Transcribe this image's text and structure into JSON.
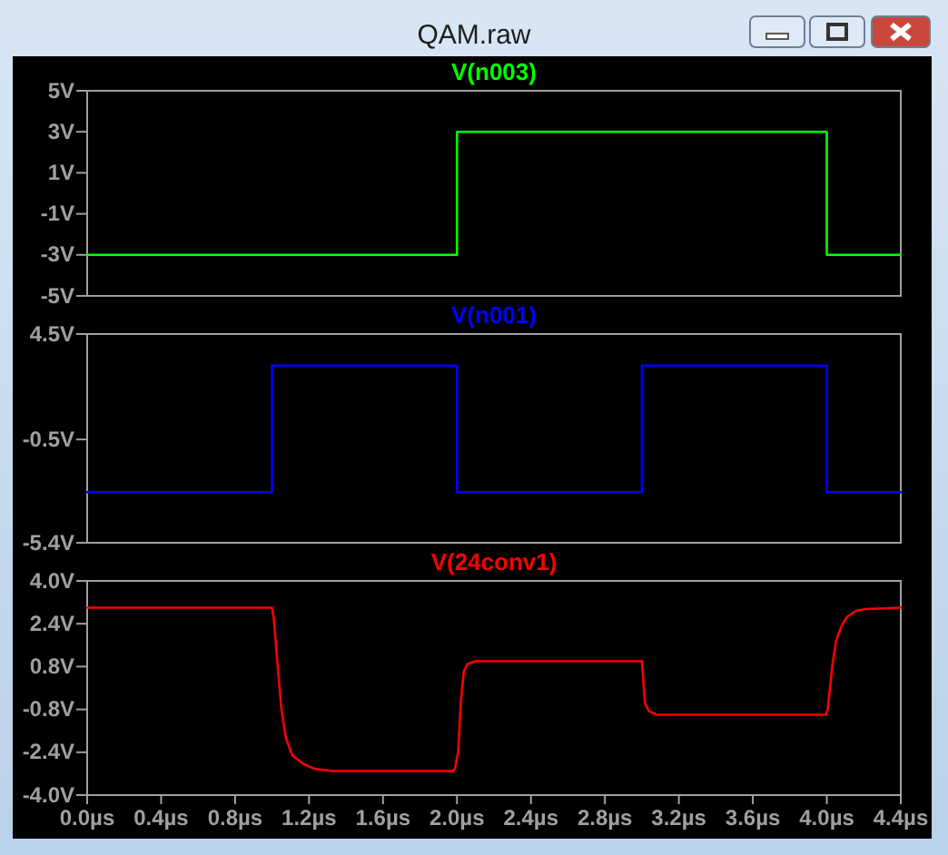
{
  "chart_data": [
    {
      "type": "step",
      "title": "QAM.raw",
      "x": [
        0,
        2,
        4,
        4.4
      ],
      "series": [
        {
          "name": "V(n003)",
          "color": "#00ff00",
          "values": [
            -3,
            3,
            -3,
            -3
          ]
        }
      ],
      "xlim": [
        0,
        4.4
      ],
      "ylim": [
        -5,
        5
      ],
      "yticks": [
        {
          "value": 5,
          "label": "5V"
        },
        {
          "value": 3,
          "label": "3V"
        },
        {
          "value": 1,
          "label": "1V"
        },
        {
          "value": -1,
          "label": "-1V"
        },
        {
          "value": -3,
          "label": "-3V"
        },
        {
          "value": -5,
          "label": "-5V"
        }
      ],
      "tick_labels": "y",
      "legend": "top"
    },
    {
      "type": "step",
      "x": [
        0,
        1,
        2,
        3,
        4,
        4.4
      ],
      "series": [
        {
          "name": "V(n001)",
          "color": "#0000ff",
          "values": [
            -3,
            3,
            -3,
            3,
            -3,
            -3
          ]
        }
      ],
      "xlim": [
        0,
        4.4
      ],
      "ylim": [
        -5.4,
        4.5
      ],
      "yticks": [
        {
          "value": 4.5,
          "label": "4.5V"
        },
        {
          "value": -0.5,
          "label": "-0.5V"
        },
        {
          "value": -5.4,
          "label": "-5.4V"
        }
      ],
      "tick_labels": "y",
      "legend": "top"
    },
    {
      "type": "line",
      "x": [
        0,
        1.0,
        1.01,
        1.03,
        1.05,
        1.075,
        1.11,
        1.17,
        1.23,
        1.33,
        1.98,
        1.99,
        2.007,
        2.02,
        2.037,
        2.056,
        2.1,
        3.0,
        3.004,
        3.017,
        3.037,
        3.08,
        3.995,
        4.005,
        4.03,
        4.05,
        4.08,
        4.11,
        4.16,
        4.21,
        4.4
      ],
      "series": [
        {
          "name": "V(24conv1)",
          "color": "#ff0000",
          "values": [
            3.0,
            3.0,
            2.55,
            0.84,
            -0.75,
            -1.89,
            -2.52,
            -2.84,
            -3.02,
            -3.1,
            -3.1,
            -3.0,
            -2.34,
            -0.57,
            0.61,
            0.89,
            1.0,
            1.0,
            0.61,
            -0.57,
            -0.86,
            -1.0,
            -1.0,
            -0.8,
            0.84,
            1.75,
            2.32,
            2.66,
            2.89,
            2.95,
            3.0
          ]
        }
      ],
      "xlim": [
        0,
        4.4
      ],
      "ylim": [
        -4.0,
        4.0
      ],
      "yticks": [
        {
          "value": 4.0,
          "label": "4.0V"
        },
        {
          "value": 2.4,
          "label": "2.4V"
        },
        {
          "value": 0.8,
          "label": "0.8V"
        },
        {
          "value": -0.8,
          "label": "-0.8V"
        },
        {
          "value": -2.4,
          "label": "-2.4V"
        },
        {
          "value": -4.0,
          "label": "-4.0V"
        }
      ],
      "xticks": [
        {
          "value": 0,
          "label": "0.0µs"
        },
        {
          "value": 0.4,
          "label": "0.4µs"
        },
        {
          "value": 0.8,
          "label": "0.8µs"
        },
        {
          "value": 1.2,
          "label": "1.2µs"
        },
        {
          "value": 1.6,
          "label": "1.6µs"
        },
        {
          "value": 2.0,
          "label": "2.0µs"
        },
        {
          "value": 2.4,
          "label": "2.4µs"
        },
        {
          "value": 2.8,
          "label": "2.8µs"
        },
        {
          "value": 3.2,
          "label": "3.2µs"
        },
        {
          "value": 3.6,
          "label": "3.6µs"
        },
        {
          "value": 4.0,
          "label": "4.0µs"
        },
        {
          "value": 4.4,
          "label": "4.4µs"
        }
      ],
      "legend": "top"
    }
  ]
}
